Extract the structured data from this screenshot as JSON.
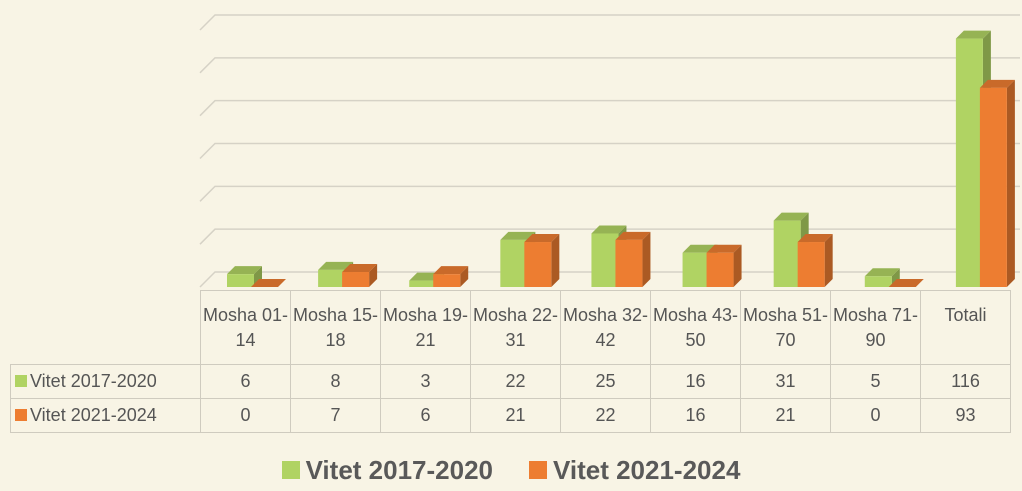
{
  "chart_data": {
    "type": "bar3d",
    "categories": [
      "Mosha 01-14",
      "Mosha 15-18",
      "Mosha 19-21",
      "Mosha 22-31",
      "Mosha 32-42",
      "Mosha 43-50",
      "Mosha 51-70",
      "Mosha 71-90",
      "Totali"
    ],
    "series": [
      {
        "name": "Vitet 2017-2020",
        "color": "#b0d363",
        "values": [
          6,
          8,
          3,
          22,
          25,
          16,
          31,
          5,
          116
        ]
      },
      {
        "name": "Vitet 2021-2024",
        "color": "#ed7d31",
        "values": [
          0,
          7,
          6,
          21,
          22,
          16,
          21,
          0,
          93
        ]
      }
    ],
    "ylim": [
      0,
      120
    ],
    "yticks": [
      0,
      20,
      40,
      60,
      80,
      100,
      120
    ],
    "grid": true,
    "legend": "bottom"
  }
}
